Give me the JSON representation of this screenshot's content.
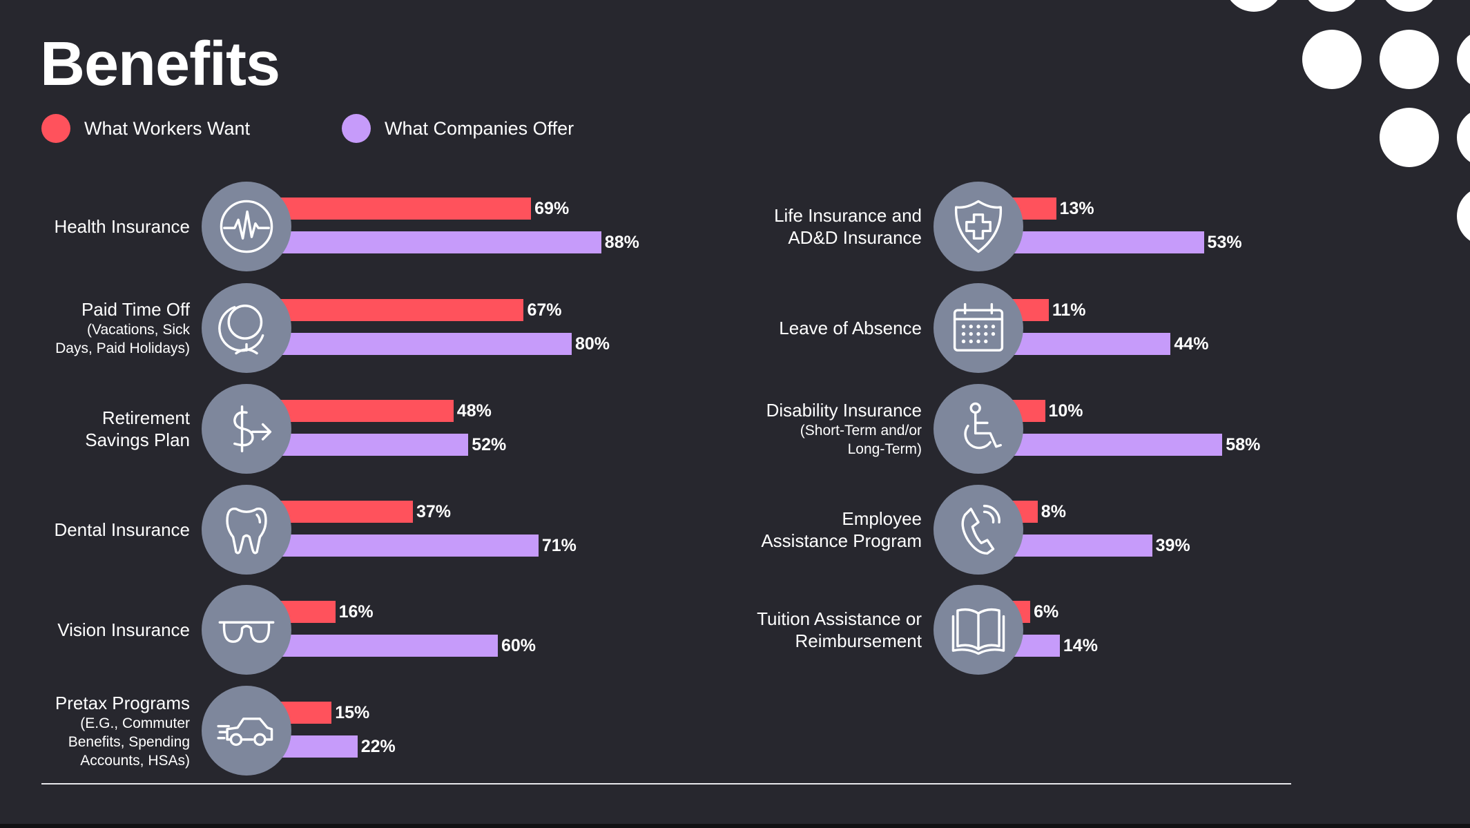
{
  "title": "Benefits",
  "legend": [
    {
      "label": "What Workers Want",
      "color": "#ff525c"
    },
    {
      "label": "What Companies Offer",
      "color": "#c69bfa"
    }
  ],
  "colors": {
    "background": "#27272e",
    "want": "#ff525c",
    "offer": "#c69bfa",
    "icon_circle": "#7e879c"
  },
  "chart_data": {
    "type": "bar",
    "orientation": "horizontal",
    "title": "Benefits",
    "series_names": [
      "What Workers Want",
      "What Companies Offer"
    ],
    "unit": "%",
    "xlim": [
      0,
      100
    ],
    "grid": false,
    "legend_placement": "top-left",
    "items": [
      {
        "label": "Health Insurance",
        "sublabel": "",
        "icon": "heart-monitor-icon",
        "want": 69,
        "offer": 88
      },
      {
        "label": "Paid Time Off",
        "sublabel": "(Vacations, Sick\nDays, Paid Holidays)",
        "icon": "globe-icon",
        "want": 67,
        "offer": 80
      },
      {
        "label": "Retirement\nSavings Plan",
        "sublabel": "",
        "icon": "dollar-arrow-icon",
        "want": 48,
        "offer": 52
      },
      {
        "label": "Dental Insurance",
        "sublabel": "",
        "icon": "tooth-icon",
        "want": 37,
        "offer": 71
      },
      {
        "label": "Vision Insurance",
        "sublabel": "",
        "icon": "glasses-icon",
        "want": 16,
        "offer": 60
      },
      {
        "label": "Pretax Programs",
        "sublabel": "(E.G., Commuter\nBenefits, Spending\nAccounts, HSAs)",
        "icon": "car-icon",
        "want": 15,
        "offer": 22
      },
      {
        "label": "Life Insurance and\nAD&D Insurance",
        "sublabel": "",
        "icon": "shield-cross-icon",
        "want": 13,
        "offer": 53
      },
      {
        "label": "Leave of Absence",
        "sublabel": "",
        "icon": "calendar-icon",
        "want": 11,
        "offer": 44
      },
      {
        "label": "Disability Insurance",
        "sublabel": "(Short-Term and/or\nLong-Term)",
        "icon": "wheelchair-icon",
        "want": 10,
        "offer": 58
      },
      {
        "label": "Employee\nAssistance Program",
        "sublabel": "",
        "icon": "phone-icon",
        "want": 8,
        "offer": 39
      },
      {
        "label": "Tuition Assistance or\nReimbursement",
        "sublabel": "",
        "icon": "book-icon",
        "want": 6,
        "offer": 14
      }
    ]
  }
}
